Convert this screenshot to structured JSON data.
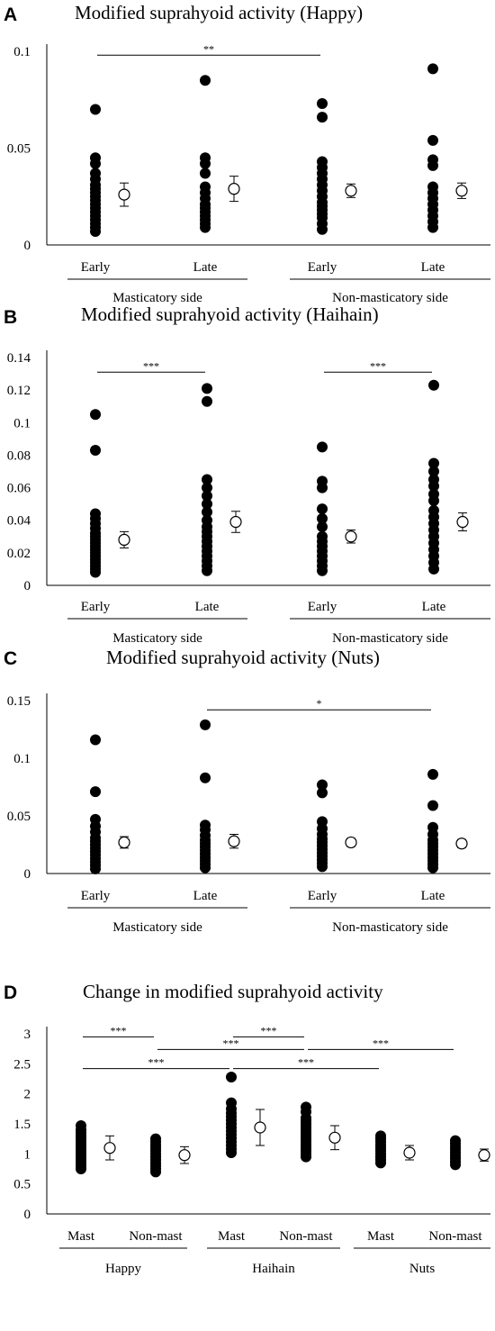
{
  "chart_data": [
    {
      "panel": "A",
      "type": "scatter",
      "title": "Modified suprahyoid activity (Happy)",
      "ylim": [
        0,
        0.1
      ],
      "yticks": [
        0,
        0.05,
        0.1
      ],
      "ytick_labels": [
        "0",
        "0.05",
        "0.1"
      ],
      "categories": [
        "Early",
        "Late",
        "Early",
        "Late"
      ],
      "groups": [
        {
          "label": "Masticatory side",
          "categories": [
            0,
            1
          ]
        },
        {
          "label": "Non-masticatory side",
          "categories": [
            2,
            3
          ]
        }
      ],
      "points": [
        [
          0.007,
          0.009,
          0.011,
          0.013,
          0.015,
          0.017,
          0.019,
          0.021,
          0.023,
          0.025,
          0.027,
          0.029,
          0.031,
          0.034,
          0.037,
          0.042,
          0.045,
          0.07
        ],
        [
          0.009,
          0.011,
          0.013,
          0.015,
          0.017,
          0.019,
          0.021,
          0.024,
          0.027,
          0.03,
          0.037,
          0.042,
          0.045,
          0.085
        ],
        [
          0.008,
          0.011,
          0.014,
          0.016,
          0.018,
          0.02,
          0.022,
          0.025,
          0.028,
          0.031,
          0.034,
          0.037,
          0.04,
          0.043,
          0.066,
          0.073
        ],
        [
          0.009,
          0.012,
          0.015,
          0.018,
          0.021,
          0.024,
          0.027,
          0.03,
          0.041,
          0.044,
          0.054,
          0.091
        ]
      ],
      "means": [
        0.026,
        0.029,
        0.028,
        0.028
      ],
      "errors": [
        0.006,
        0.0065,
        0.0035,
        0.004
      ],
      "significance": [
        {
          "from": 0,
          "to": 2,
          "label": "**",
          "y": 0.098
        }
      ]
    },
    {
      "panel": "B",
      "type": "scatter",
      "title": "Modified suprahyoid activity (Haihain)",
      "ylim": [
        0,
        0.14
      ],
      "yticks": [
        0,
        0.02,
        0.04,
        0.06,
        0.08,
        0.1,
        0.12,
        0.14
      ],
      "ytick_labels": [
        "0",
        "0.02",
        "0.04",
        "0.06",
        "0.08",
        "0.1",
        "0.12",
        "0.14"
      ],
      "categories": [
        "Early",
        "Late",
        "Early",
        "Late"
      ],
      "groups": [
        {
          "label": "Masticatory side",
          "categories": [
            0,
            1
          ]
        },
        {
          "label": "Non-masticatory side",
          "categories": [
            2,
            3
          ]
        }
      ],
      "points": [
        [
          0.008,
          0.01,
          0.012,
          0.014,
          0.016,
          0.018,
          0.02,
          0.022,
          0.024,
          0.026,
          0.028,
          0.03,
          0.032,
          0.035,
          0.038,
          0.041,
          0.044,
          0.083,
          0.105
        ],
        [
          0.009,
          0.012,
          0.015,
          0.018,
          0.021,
          0.024,
          0.027,
          0.03,
          0.033,
          0.036,
          0.04,
          0.045,
          0.05,
          0.055,
          0.06,
          0.065,
          0.113,
          0.121
        ],
        [
          0.009,
          0.012,
          0.015,
          0.018,
          0.021,
          0.024,
          0.027,
          0.03,
          0.036,
          0.041,
          0.047,
          0.06,
          0.064,
          0.085
        ],
        [
          0.01,
          0.014,
          0.018,
          0.022,
          0.026,
          0.03,
          0.034,
          0.038,
          0.042,
          0.046,
          0.052,
          0.056,
          0.061,
          0.065,
          0.07,
          0.075,
          0.123
        ]
      ],
      "means": [
        0.028,
        0.039,
        0.03,
        0.039
      ],
      "errors": [
        0.005,
        0.0065,
        0.004,
        0.0055
      ],
      "significance": [
        {
          "from": 0,
          "to": 1,
          "label": "***",
          "y": 0.131
        },
        {
          "from": 2,
          "to": 3,
          "label": "***",
          "y": 0.131
        }
      ]
    },
    {
      "panel": "C",
      "type": "scatter",
      "title": "Modified suprahyoid activity (Nuts)",
      "ylim": [
        0,
        0.15
      ],
      "yticks": [
        0,
        0.05,
        0.1,
        0.15
      ],
      "ytick_labels": [
        "0",
        "0.05",
        "0.1",
        "0.15"
      ],
      "categories": [
        "Early",
        "Late",
        "Early",
        "Late"
      ],
      "groups": [
        {
          "label": "Masticatory side",
          "categories": [
            0,
            1
          ]
        },
        {
          "label": "Non-masticatory side",
          "categories": [
            2,
            3
          ]
        }
      ],
      "points": [
        [
          0.004,
          0.007,
          0.01,
          0.013,
          0.016,
          0.019,
          0.022,
          0.025,
          0.028,
          0.031,
          0.036,
          0.041,
          0.047,
          0.071,
          0.116
        ],
        [
          0.005,
          0.008,
          0.011,
          0.014,
          0.017,
          0.02,
          0.023,
          0.026,
          0.029,
          0.033,
          0.038,
          0.042,
          0.083,
          0.129
        ],
        [
          0.006,
          0.009,
          0.012,
          0.015,
          0.018,
          0.021,
          0.024,
          0.027,
          0.03,
          0.034,
          0.039,
          0.045,
          0.07,
          0.077
        ],
        [
          0.005,
          0.008,
          0.011,
          0.014,
          0.017,
          0.02,
          0.023,
          0.026,
          0.029,
          0.034,
          0.04,
          0.059,
          0.086
        ]
      ],
      "means": [
        0.027,
        0.028,
        0.027,
        0.026
      ],
      "errors": [
        0.005,
        0.006,
        0.0035,
        0.0035
      ],
      "significance": [
        {
          "from": 1,
          "to": 3,
          "label": "*",
          "y": 0.142
        }
      ]
    },
    {
      "panel": "D",
      "type": "scatter",
      "title": "Change in modified suprahyoid activity",
      "ylim": [
        0,
        3
      ],
      "yticks": [
        0,
        0.5,
        1,
        1.5,
        2,
        2.5,
        3
      ],
      "ytick_labels": [
        "0",
        "0.5",
        "1",
        "1.5",
        "2",
        "2.5",
        "3"
      ],
      "categories": [
        "Mast",
        "Non-mast",
        "Mast",
        "Non-mast",
        "Mast",
        "Non-mast"
      ],
      "groups": [
        {
          "label": "Happy",
          "categories": [
            0,
            1
          ]
        },
        {
          "label": "Haihain",
          "categories": [
            2,
            3
          ]
        },
        {
          "label": "Nuts",
          "categories": [
            4,
            5
          ]
        }
      ],
      "points": [
        [
          0.75,
          0.8,
          0.85,
          0.9,
          0.95,
          1.0,
          1.05,
          1.1,
          1.15,
          1.2,
          1.25,
          1.3,
          1.35,
          1.4,
          1.47
        ],
        [
          0.7,
          0.75,
          0.8,
          0.85,
          0.9,
          0.95,
          1.0,
          1.05,
          1.1,
          1.15,
          1.2,
          1.25
        ],
        [
          1.02,
          1.08,
          1.14,
          1.2,
          1.26,
          1.32,
          1.38,
          1.44,
          1.5,
          1.56,
          1.62,
          1.68,
          1.75,
          1.85,
          2.28
        ],
        [
          0.95,
          1.0,
          1.05,
          1.1,
          1.15,
          1.2,
          1.25,
          1.3,
          1.35,
          1.4,
          1.45,
          1.5,
          1.55,
          1.6,
          1.7,
          1.78
        ],
        [
          0.85,
          0.9,
          0.95,
          1.0,
          1.05,
          1.1,
          1.15,
          1.2,
          1.25,
          1.3
        ],
        [
          0.82,
          0.87,
          0.92,
          0.97,
          1.02,
          1.07,
          1.12,
          1.17,
          1.22
        ]
      ],
      "means": [
        1.1,
        0.98,
        1.44,
        1.27,
        1.02,
        0.98
      ],
      "errors": [
        0.2,
        0.14,
        0.3,
        0.2,
        0.12,
        0.1
      ],
      "significance": [
        {
          "from": 0,
          "to": 1,
          "label": "***",
          "y": 2.95
        },
        {
          "from": 2,
          "to": 3,
          "label": "***",
          "y": 2.95
        },
        {
          "from": 1,
          "to": 3,
          "label": "***",
          "y": 2.74
        },
        {
          "from": 3,
          "to": 5,
          "label": "***",
          "y": 2.74
        },
        {
          "from": 0,
          "to": 2,
          "label": "***",
          "y": 2.42
        },
        {
          "from": 2,
          "to": 4,
          "label": "***",
          "y": 2.42
        }
      ]
    }
  ]
}
